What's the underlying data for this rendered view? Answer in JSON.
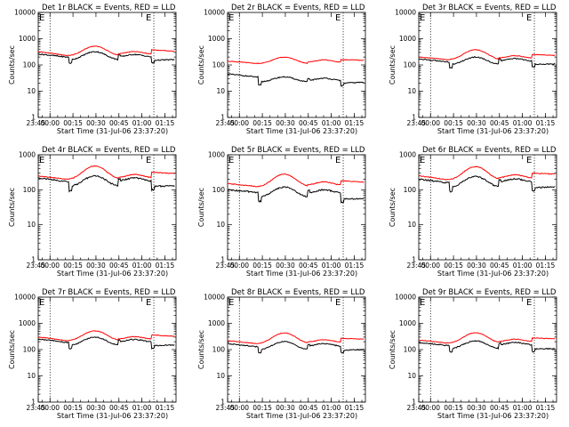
{
  "figure": {
    "marker_letter": "E"
  },
  "chart_data": [
    {
      "type": "line",
      "title": "Det 1r BLACK = Events, RED = LLD",
      "xlabel": "Start Time (31-Jul-06 23:37:20)",
      "ylabel": "Counts/sec",
      "yscale": "log",
      "ylim": [
        1,
        10000
      ],
      "yticks": [
        "1",
        "10",
        "100",
        "1000",
        "10000"
      ],
      "xticks": [
        "23:45",
        "00:00",
        "00:15",
        "00:30",
        "00:45",
        "01:00",
        "01:15"
      ],
      "x_minutes_after_start": [
        0,
        7.7,
        22.7,
        37.7,
        52.7,
        67.7,
        82.7
      ],
      "xlim_minutes": [
        0,
        90
      ],
      "marker_lines_minutes": [
        7.7,
        75.5
      ],
      "series": [
        {
          "name": "LLD",
          "color": "#ff0000",
          "values": [
            320,
            230,
            220,
            520,
            260,
            250,
            380,
            330
          ]
        },
        {
          "name": "Events",
          "color": "#000000",
          "values": [
            260,
            200,
            150,
            320,
            200,
            170,
            150,
            160
          ]
        }
      ]
    },
    {
      "type": "line",
      "title": "Det 2r BLACK = Events, RED = LLD",
      "xlabel": "Start Time (31-Jul-06 23:37:20)",
      "ylabel": "Counts/sec",
      "yscale": "log",
      "ylim": [
        1,
        10000
      ],
      "yticks": [
        "1",
        "10",
        "100",
        "1000",
        "10000"
      ],
      "xticks": [
        "23:45",
        "00:00",
        "00:15",
        "00:30",
        "00:45",
        "01:00",
        "01:15"
      ],
      "x_minutes_after_start": [
        0,
        7.7,
        22.7,
        37.7,
        52.7,
        67.7,
        82.7
      ],
      "xlim_minutes": [
        0,
        90
      ],
      "marker_lines_minutes": [
        7.7,
        75.5
      ],
      "series": [
        {
          "name": "LLD",
          "color": "#ff0000",
          "values": [
            140,
            115,
            110,
            200,
            125,
            115,
            160,
            150
          ]
        },
        {
          "name": "Events",
          "color": "#000000",
          "values": [
            45,
            35,
            22,
            35,
            25,
            22,
            20,
            22
          ]
        }
      ]
    },
    {
      "type": "line",
      "title": "Det 3r BLACK = Events, RED = LLD",
      "xlabel": "Start Time (31-Jul-06 23:37:20)",
      "ylabel": "Counts/sec",
      "yscale": "log",
      "ylim": [
        1,
        10000
      ],
      "yticks": [
        "1",
        "10",
        "100",
        "1000",
        "10000"
      ],
      "xticks": [
        "23:45",
        "00:00",
        "00:15",
        "00:30",
        "00:45",
        "01:00",
        "01:15"
      ],
      "x_minutes_after_start": [
        0,
        7.7,
        22.7,
        37.7,
        52.7,
        67.7,
        82.7
      ],
      "xlim_minutes": [
        0,
        90
      ],
      "marker_lines_minutes": [
        7.7,
        75.5
      ],
      "series": [
        {
          "name": "LLD",
          "color": "#ff0000",
          "values": [
            200,
            160,
            155,
            380,
            180,
            165,
            250,
            230
          ]
        },
        {
          "name": "Events",
          "color": "#000000",
          "values": [
            170,
            130,
            100,
            200,
            140,
            120,
            105,
            110
          ]
        }
      ]
    },
    {
      "type": "line",
      "title": "Det 4r BLACK = Events, RED = LLD",
      "xlabel": "Start Time (31-Jul-06 23:37:20)",
      "ylabel": "Counts/sec",
      "yscale": "log",
      "ylim": [
        1,
        1000
      ],
      "yticks": [
        "1",
        "10",
        "100",
        "1000"
      ],
      "xticks": [
        "23:45",
        "00:00",
        "00:15",
        "00:30",
        "00:45",
        "01:00",
        "01:15"
      ],
      "x_minutes_after_start": [
        0,
        7.7,
        22.7,
        37.7,
        52.7,
        67.7,
        82.7
      ],
      "xlim_minutes": [
        0,
        90
      ],
      "marker_lines_minutes": [
        7.7,
        75.5
      ],
      "series": [
        {
          "name": "LLD",
          "color": "#ff0000",
          "values": [
            250,
            200,
            195,
            480,
            220,
            210,
            320,
            290
          ]
        },
        {
          "name": "Events",
          "color": "#000000",
          "values": [
            220,
            170,
            120,
            250,
            175,
            150,
            125,
            130
          ]
        }
      ]
    },
    {
      "type": "line",
      "title": "Det 5r BLACK = Events, RED = LLD",
      "xlabel": "Start Time (31-Jul-06 23:37:20)",
      "ylabel": "Counts/sec",
      "yscale": "log",
      "ylim": [
        1,
        1000
      ],
      "yticks": [
        "1",
        "10",
        "100",
        "1000"
      ],
      "xticks": [
        "23:45",
        "00:00",
        "00:15",
        "00:30",
        "00:45",
        "01:00",
        "01:15"
      ],
      "x_minutes_after_start": [
        0,
        7.7,
        22.7,
        37.7,
        52.7,
        67.7,
        82.7
      ],
      "xlim_minutes": [
        0,
        90
      ],
      "marker_lines_minutes": [
        7.7,
        75.5
      ],
      "series": [
        {
          "name": "LLD",
          "color": "#ff0000",
          "values": [
            150,
            125,
            120,
            280,
            135,
            125,
            180,
            165
          ]
        },
        {
          "name": "Events",
          "color": "#000000",
          "values": [
            100,
            85,
            60,
            120,
            80,
            70,
            55,
            55
          ]
        }
      ]
    },
    {
      "type": "line",
      "title": "Det 6r BLACK = Events, RED = LLD",
      "xlabel": "Start Time (31-Jul-06 23:37:20)",
      "ylabel": "Counts/sec",
      "yscale": "log",
      "ylim": [
        1,
        1000
      ],
      "yticks": [
        "1",
        "10",
        "100",
        "1000"
      ],
      "xticks": [
        "23:45",
        "00:00",
        "00:15",
        "00:30",
        "00:45",
        "01:00",
        "01:15"
      ],
      "x_minutes_after_start": [
        0,
        7.7,
        22.7,
        37.7,
        52.7,
        67.7,
        82.7
      ],
      "xlim_minutes": [
        0,
        90
      ],
      "marker_lines_minutes": [
        7.7,
        75.5
      ],
      "series": [
        {
          "name": "LLD",
          "color": "#ff0000",
          "values": [
            250,
            195,
            190,
            460,
            215,
            200,
            300,
            280
          ]
        },
        {
          "name": "Events",
          "color": "#000000",
          "values": [
            200,
            160,
            115,
            240,
            165,
            145,
            115,
            120
          ]
        }
      ]
    },
    {
      "type": "line",
      "title": "Det 7r BLACK = Events, RED = LLD",
      "xlabel": "Start Time (31-Jul-06 23:37:20)",
      "ylabel": "Counts/sec",
      "yscale": "log",
      "ylim": [
        1,
        10000
      ],
      "yticks": [
        "1",
        "10",
        "100",
        "1000",
        "10000"
      ],
      "xticks": [
        "23:45",
        "00:00",
        "00:15",
        "00:30",
        "00:45",
        "01:00",
        "01:15"
      ],
      "x_minutes_after_start": [
        0,
        7.7,
        22.7,
        37.7,
        52.7,
        67.7,
        82.7
      ],
      "xlim_minutes": [
        0,
        90
      ],
      "marker_lines_minutes": [
        7.7,
        75.5
      ],
      "series": [
        {
          "name": "LLD",
          "color": "#ff0000",
          "values": [
            300,
            220,
            215,
            520,
            250,
            235,
            360,
            320
          ]
        },
        {
          "name": "Events",
          "color": "#000000",
          "values": [
            250,
            190,
            140,
            300,
            195,
            165,
            140,
            150
          ]
        }
      ]
    },
    {
      "type": "line",
      "title": "Det 8r BLACK = Events, RED = LLD",
      "xlabel": "Start Time (31-Jul-06 23:37:20)",
      "ylabel": "Counts/sec",
      "yscale": "log",
      "ylim": [
        1,
        10000
      ],
      "yticks": [
        "1",
        "10",
        "100",
        "1000",
        "10000"
      ],
      "xticks": [
        "23:45",
        "00:00",
        "00:15",
        "00:30",
        "00:45",
        "01:00",
        "01:15"
      ],
      "x_minutes_after_start": [
        0,
        7.7,
        22.7,
        37.7,
        52.7,
        67.7,
        82.7
      ],
      "xlim_minutes": [
        0,
        90
      ],
      "marker_lines_minutes": [
        7.7,
        75.5
      ],
      "series": [
        {
          "name": "LLD",
          "color": "#ff0000",
          "values": [
            220,
            170,
            165,
            430,
            190,
            175,
            270,
            250
          ]
        },
        {
          "name": "Events",
          "color": "#000000",
          "values": [
            170,
            130,
            95,
            200,
            135,
            115,
            95,
            100
          ]
        }
      ]
    },
    {
      "type": "line",
      "title": "Det 9r BLACK = Events, RED = LLD",
      "xlabel": "Start Time (31-Jul-06 23:37:20)",
      "ylabel": "Counts/sec",
      "yscale": "log",
      "ylim": [
        1,
        10000
      ],
      "yticks": [
        "1",
        "10",
        "100",
        "1000",
        "10000"
      ],
      "xticks": [
        "23:45",
        "00:00",
        "00:15",
        "00:30",
        "00:45",
        "01:00",
        "01:15"
      ],
      "x_minutes_after_start": [
        0,
        7.7,
        22.7,
        37.7,
        52.7,
        67.7,
        82.7
      ],
      "xlim_minutes": [
        0,
        90
      ],
      "marker_lines_minutes": [
        7.7,
        75.5
      ],
      "series": [
        {
          "name": "LLD",
          "color": "#ff0000",
          "values": [
            230,
            180,
            175,
            440,
            200,
            185,
            280,
            260
          ]
        },
        {
          "name": "Events",
          "color": "#000000",
          "values": [
            185,
            145,
            105,
            215,
            150,
            130,
            105,
            110
          ]
        }
      ]
    }
  ]
}
